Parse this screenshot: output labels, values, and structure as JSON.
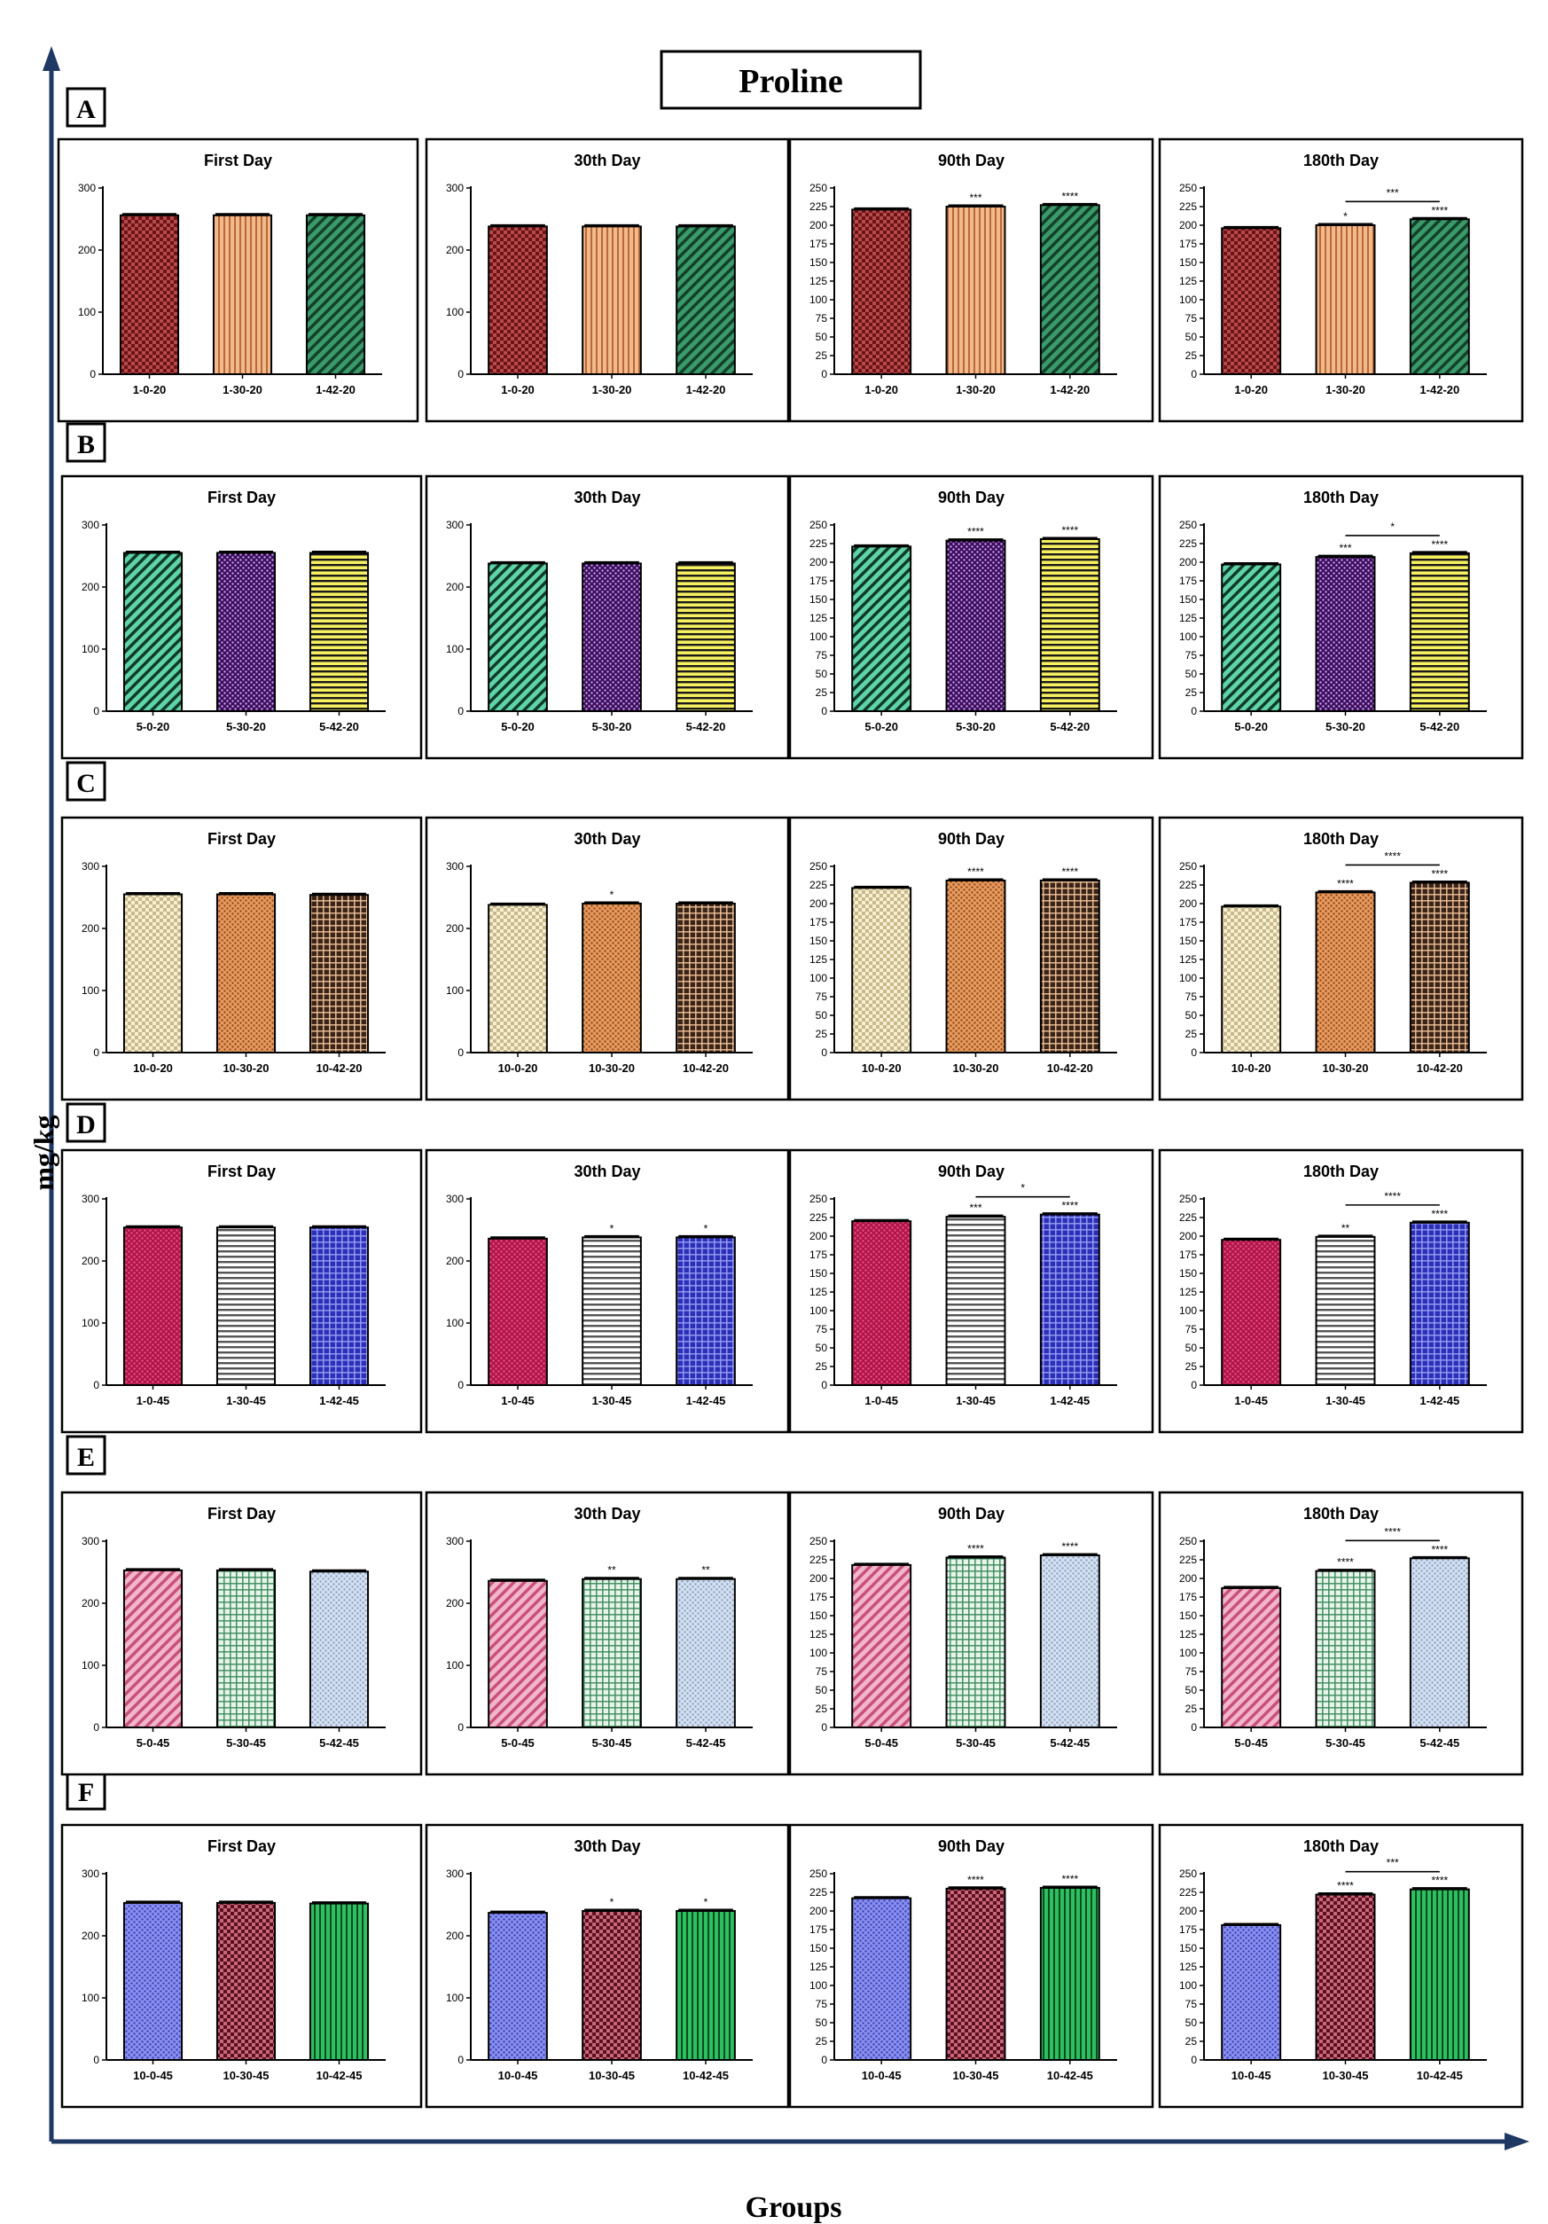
{
  "figure": {
    "title": "Proline",
    "ylabel": "mg/kg",
    "xlabel": "Groups"
  },
  "colors": {
    "frame": "#000000",
    "axis_arrow": "#1f3864"
  },
  "chart_data": [
    {
      "type": "bar",
      "row": "A",
      "title": "First Day",
      "categories": [
        "1-0-20",
        "1-30-20",
        "1-42-20"
      ],
      "values": [
        256,
        256,
        256
      ],
      "ylim": [
        0,
        300
      ],
      "yticks": [
        0,
        100,
        200,
        300
      ],
      "annotations": [
        "",
        "",
        ""
      ],
      "bracket": null,
      "patterns": [
        "checker-red",
        "vstripe-tan",
        "dstripe-green"
      ]
    },
    {
      "type": "bar",
      "row": "A",
      "title": "30th Day",
      "categories": [
        "1-0-20",
        "1-30-20",
        "1-42-20"
      ],
      "values": [
        238,
        238,
        238
      ],
      "ylim": [
        0,
        300
      ],
      "yticks": [
        0,
        100,
        200,
        300
      ],
      "annotations": [
        "",
        "",
        ""
      ],
      "bracket": null,
      "patterns": [
        "checker-red",
        "vstripe-tan",
        "dstripe-green"
      ]
    },
    {
      "type": "bar",
      "row": "A",
      "title": "90th Day",
      "categories": [
        "1-0-20",
        "1-30-20",
        "1-42-20"
      ],
      "values": [
        221,
        225,
        227
      ],
      "ylim": [
        0,
        250
      ],
      "yticks": [
        0,
        25,
        50,
        75,
        100,
        125,
        150,
        175,
        200,
        225,
        250
      ],
      "annotations": [
        "",
        "***",
        "****"
      ],
      "bracket": null,
      "patterns": [
        "checker-red",
        "vstripe-tan",
        "dstripe-green"
      ]
    },
    {
      "type": "bar",
      "row": "A",
      "title": "180th Day",
      "categories": [
        "1-0-20",
        "1-30-20",
        "1-42-20"
      ],
      "values": [
        196,
        200,
        208
      ],
      "ylim": [
        0,
        250
      ],
      "yticks": [
        0,
        25,
        50,
        75,
        100,
        125,
        150,
        175,
        200,
        225,
        250
      ],
      "annotations": [
        "",
        "*",
        "****"
      ],
      "bracket": {
        "from": 1,
        "to": 2,
        "label": "***"
      },
      "patterns": [
        "checker-red",
        "vstripe-tan",
        "dstripe-green"
      ]
    },
    {
      "type": "bar",
      "row": "B",
      "title": "First Day",
      "categories": [
        "5-0-20",
        "5-30-20",
        "5-42-20"
      ],
      "values": [
        255,
        255,
        255
      ],
      "ylim": [
        0,
        300
      ],
      "yticks": [
        0,
        100,
        200,
        300
      ],
      "annotations": [
        "",
        "",
        ""
      ],
      "bracket": null,
      "patterns": [
        "dstripe-mint",
        "dots-purple",
        "hstripe-yellow"
      ]
    },
    {
      "type": "bar",
      "row": "B",
      "title": "30th Day",
      "categories": [
        "5-0-20",
        "5-30-20",
        "5-42-20"
      ],
      "values": [
        238,
        238,
        238
      ],
      "ylim": [
        0,
        300
      ],
      "yticks": [
        0,
        100,
        200,
        300
      ],
      "annotations": [
        "",
        "",
        ""
      ],
      "bracket": null,
      "patterns": [
        "dstripe-mint",
        "dots-purple",
        "hstripe-yellow"
      ]
    },
    {
      "type": "bar",
      "row": "B",
      "title": "90th Day",
      "categories": [
        "5-0-20",
        "5-30-20",
        "5-42-20"
      ],
      "values": [
        221,
        229,
        231
      ],
      "ylim": [
        0,
        250
      ],
      "yticks": [
        0,
        25,
        50,
        75,
        100,
        125,
        150,
        175,
        200,
        225,
        250
      ],
      "annotations": [
        "",
        "****",
        "****"
      ],
      "bracket": null,
      "patterns": [
        "dstripe-mint",
        "dots-purple",
        "hstripe-yellow"
      ]
    },
    {
      "type": "bar",
      "row": "B",
      "title": "180th Day",
      "categories": [
        "5-0-20",
        "5-30-20",
        "5-42-20"
      ],
      "values": [
        197,
        207,
        212
      ],
      "ylim": [
        0,
        250
      ],
      "yticks": [
        0,
        25,
        50,
        75,
        100,
        125,
        150,
        175,
        200,
        225,
        250
      ],
      "annotations": [
        "",
        "***",
        "****"
      ],
      "bracket": {
        "from": 1,
        "to": 2,
        "label": "*"
      },
      "patterns": [
        "dstripe-mint",
        "dots-purple",
        "hstripe-yellow"
      ]
    },
    {
      "type": "bar",
      "row": "C",
      "title": "First Day",
      "categories": [
        "10-0-20",
        "10-30-20",
        "10-42-20"
      ],
      "values": [
        255,
        255,
        254
      ],
      "ylim": [
        0,
        300
      ],
      "yticks": [
        0,
        100,
        200,
        300
      ],
      "annotations": [
        "",
        "",
        ""
      ],
      "bracket": null,
      "patterns": [
        "checker-cream",
        "dots-orange",
        "grid-brown"
      ]
    },
    {
      "type": "bar",
      "row": "C",
      "title": "30th Day",
      "categories": [
        "10-0-20",
        "10-30-20",
        "10-42-20"
      ],
      "values": [
        238,
        240,
        240
      ],
      "ylim": [
        0,
        300
      ],
      "yticks": [
        0,
        100,
        200,
        300
      ],
      "annotations": [
        "",
        "*",
        ""
      ],
      "bracket": null,
      "patterns": [
        "checker-cream",
        "dots-orange",
        "grid-brown"
      ]
    },
    {
      "type": "bar",
      "row": "C",
      "title": "90th Day",
      "categories": [
        "10-0-20",
        "10-30-20",
        "10-42-20"
      ],
      "values": [
        221,
        231,
        231
      ],
      "ylim": [
        0,
        250
      ],
      "yticks": [
        0,
        25,
        50,
        75,
        100,
        125,
        150,
        175,
        200,
        225,
        250
      ],
      "annotations": [
        "",
        "****",
        "****"
      ],
      "bracket": null,
      "patterns": [
        "checker-cream",
        "dots-orange",
        "grid-brown"
      ]
    },
    {
      "type": "bar",
      "row": "C",
      "title": "180th Day",
      "categories": [
        "10-0-20",
        "10-30-20",
        "10-42-20"
      ],
      "values": [
        196,
        215,
        228
      ],
      "ylim": [
        0,
        250
      ],
      "yticks": [
        0,
        25,
        50,
        75,
        100,
        125,
        150,
        175,
        200,
        225,
        250
      ],
      "annotations": [
        "",
        "****",
        "****"
      ],
      "bracket": {
        "from": 1,
        "to": 2,
        "label": "****"
      },
      "patterns": [
        "checker-cream",
        "dots-orange",
        "grid-brown"
      ]
    },
    {
      "type": "bar",
      "row": "D",
      "title": "First Day",
      "categories": [
        "1-0-45",
        "1-30-45",
        "1-42-45"
      ],
      "values": [
        254,
        254,
        254
      ],
      "ylim": [
        0,
        300
      ],
      "yticks": [
        0,
        100,
        200,
        300
      ],
      "annotations": [
        "",
        "",
        ""
      ],
      "bracket": null,
      "patterns": [
        "dots-crimson",
        "hstripe-white",
        "weave-blue"
      ]
    },
    {
      "type": "bar",
      "row": "D",
      "title": "30th Day",
      "categories": [
        "1-0-45",
        "1-30-45",
        "1-42-45"
      ],
      "values": [
        236,
        238,
        238
      ],
      "ylim": [
        0,
        300
      ],
      "yticks": [
        0,
        100,
        200,
        300
      ],
      "annotations": [
        "",
        "*",
        "*"
      ],
      "bracket": null,
      "patterns": [
        "dots-crimson",
        "hstripe-white",
        "weave-blue"
      ]
    },
    {
      "type": "bar",
      "row": "D",
      "title": "90th Day",
      "categories": [
        "1-0-45",
        "1-30-45",
        "1-42-45"
      ],
      "values": [
        220,
        226,
        229
      ],
      "ylim": [
        0,
        250
      ],
      "yticks": [
        0,
        25,
        50,
        75,
        100,
        125,
        150,
        175,
        200,
        225,
        250
      ],
      "annotations": [
        "",
        "***",
        "****"
      ],
      "bracket": {
        "from": 1,
        "to": 2,
        "label": "*"
      },
      "patterns": [
        "dots-crimson",
        "hstripe-white",
        "weave-blue"
      ]
    },
    {
      "type": "bar",
      "row": "D",
      "title": "180th Day",
      "categories": [
        "1-0-45",
        "1-30-45",
        "1-42-45"
      ],
      "values": [
        195,
        199,
        218
      ],
      "ylim": [
        0,
        250
      ],
      "yticks": [
        0,
        25,
        50,
        75,
        100,
        125,
        150,
        175,
        200,
        225,
        250
      ],
      "annotations": [
        "",
        "**",
        "****"
      ],
      "bracket": {
        "from": 1,
        "to": 2,
        "label": "****"
      },
      "patterns": [
        "dots-crimson",
        "hstripe-white",
        "weave-blue"
      ]
    },
    {
      "type": "bar",
      "row": "E",
      "title": "First Day",
      "categories": [
        "5-0-45",
        "5-30-45",
        "5-42-45"
      ],
      "values": [
        253,
        253,
        251
      ],
      "ylim": [
        0,
        300
      ],
      "yticks": [
        0,
        100,
        200,
        300
      ],
      "annotations": [
        "",
        "",
        ""
      ],
      "bracket": null,
      "patterns": [
        "dstripe-pink",
        "grid-green",
        "dots-lightblue"
      ]
    },
    {
      "type": "bar",
      "row": "E",
      "title": "30th Day",
      "categories": [
        "5-0-45",
        "5-30-45",
        "5-42-45"
      ],
      "values": [
        236,
        239,
        239
      ],
      "ylim": [
        0,
        300
      ],
      "yticks": [
        0,
        100,
        200,
        300
      ],
      "annotations": [
        "",
        "**",
        "**"
      ],
      "bracket": null,
      "patterns": [
        "dstripe-pink",
        "grid-green",
        "dots-lightblue"
      ]
    },
    {
      "type": "bar",
      "row": "E",
      "title": "90th Day",
      "categories": [
        "5-0-45",
        "5-30-45",
        "5-42-45"
      ],
      "values": [
        218,
        228,
        231
      ],
      "ylim": [
        0,
        250
      ],
      "yticks": [
        0,
        25,
        50,
        75,
        100,
        125,
        150,
        175,
        200,
        225,
        250
      ],
      "annotations": [
        "",
        "****",
        "****"
      ],
      "bracket": null,
      "patterns": [
        "dstripe-pink",
        "grid-green",
        "dots-lightblue"
      ]
    },
    {
      "type": "bar",
      "row": "E",
      "title": "180th Day",
      "categories": [
        "5-0-45",
        "5-30-45",
        "5-42-45"
      ],
      "values": [
        187,
        210,
        227
      ],
      "ylim": [
        0,
        250
      ],
      "yticks": [
        0,
        25,
        50,
        75,
        100,
        125,
        150,
        175,
        200,
        225,
        250
      ],
      "annotations": [
        "",
        "****",
        "****"
      ],
      "bracket": {
        "from": 1,
        "to": 2,
        "label": "****"
      },
      "patterns": [
        "dstripe-pink",
        "grid-green",
        "dots-lightblue"
      ]
    },
    {
      "type": "bar",
      "row": "F",
      "title": "First Day",
      "categories": [
        "10-0-45",
        "10-30-45",
        "10-42-45"
      ],
      "values": [
        253,
        253,
        252
      ],
      "ylim": [
        0,
        300
      ],
      "yticks": [
        0,
        100,
        200,
        300
      ],
      "annotations": [
        "",
        "",
        ""
      ],
      "bracket": null,
      "patterns": [
        "dots-periwinkle",
        "checker-maroon",
        "vstripe-green"
      ]
    },
    {
      "type": "bar",
      "row": "F",
      "title": "30th Day",
      "categories": [
        "10-0-45",
        "10-30-45",
        "10-42-45"
      ],
      "values": [
        237,
        240,
        240
      ],
      "ylim": [
        0,
        300
      ],
      "yticks": [
        0,
        100,
        200,
        300
      ],
      "annotations": [
        "",
        "*",
        "*"
      ],
      "bracket": null,
      "patterns": [
        "dots-periwinkle",
        "checker-maroon",
        "vstripe-green"
      ]
    },
    {
      "type": "bar",
      "row": "F",
      "title": "90th Day",
      "categories": [
        "10-0-45",
        "10-30-45",
        "10-42-45"
      ],
      "values": [
        217,
        230,
        231
      ],
      "ylim": [
        0,
        250
      ],
      "yticks": [
        0,
        25,
        50,
        75,
        100,
        125,
        150,
        175,
        200,
        225,
        250
      ],
      "annotations": [
        "",
        "****",
        "****"
      ],
      "bracket": null,
      "patterns": [
        "dots-periwinkle",
        "checker-maroon",
        "vstripe-green"
      ]
    },
    {
      "type": "bar",
      "row": "F",
      "title": "180th Day",
      "categories": [
        "10-0-45",
        "10-30-45",
        "10-42-45"
      ],
      "values": [
        181,
        222,
        229
      ],
      "ylim": [
        0,
        250
      ],
      "yticks": [
        0,
        25,
        50,
        75,
        100,
        125,
        150,
        175,
        200,
        225,
        250
      ],
      "annotations": [
        "",
        "****",
        "****"
      ],
      "bracket": {
        "from": 1,
        "to": 2,
        "label": "***"
      },
      "patterns": [
        "dots-periwinkle",
        "checker-maroon",
        "vstripe-green"
      ]
    }
  ],
  "patterns": {
    "checker-red": {
      "kind": "checker",
      "fg": "#6b1418",
      "bg": "#b84a4a"
    },
    "vstripe-tan": {
      "kind": "vstripe",
      "fg": "#b8683a",
      "bg": "#f2b98a"
    },
    "dstripe-green": {
      "kind": "dstripe",
      "fg": "#13402a",
      "bg": "#3a9a6a"
    },
    "dstripe-mint": {
      "kind": "dstripe",
      "fg": "#0f3a28",
      "bg": "#5fd4a8"
    },
    "dots-purple": {
      "kind": "dots",
      "fg": "#c7a0e8",
      "bg": "#3a0c5c"
    },
    "hstripe-yellow": {
      "kind": "hstripe",
      "fg": "#1a1a1a",
      "bg": "#f7f060"
    },
    "checker-cream": {
      "kind": "checker",
      "fg": "#c9b88a",
      "bg": "#f6f0d2"
    },
    "dots-orange": {
      "kind": "dots",
      "fg": "#8a4a20",
      "bg": "#e99a5c"
    },
    "grid-brown": {
      "kind": "grid",
      "fg": "#f2c49a",
      "bg": "#3a2418"
    },
    "dots-crimson": {
      "kind": "dots",
      "fg": "#e05a80",
      "bg": "#b3124a"
    },
    "hstripe-white": {
      "kind": "hstripe",
      "fg": "#555555",
      "bg": "#ffffff"
    },
    "weave-blue": {
      "kind": "grid",
      "fg": "#9aa0f2",
      "bg": "#2c2fb8"
    },
    "dstripe-pink": {
      "kind": "dstripe",
      "fg": "#c8507a",
      "bg": "#f2b6cc"
    },
    "grid-green": {
      "kind": "grid",
      "fg": "#3a8a5a",
      "bg": "#e6f4ea"
    },
    "dots-lightblue": {
      "kind": "dots",
      "fg": "#8aa0c2",
      "bg": "#d6e2f2"
    },
    "dots-periwinkle": {
      "kind": "dots",
      "fg": "#3a40b8",
      "bg": "#8a90ee"
    },
    "checker-maroon": {
      "kind": "checker",
      "fg": "#5a1020",
      "bg": "#c8687a"
    },
    "vstripe-green": {
      "kind": "vstripe",
      "fg": "#0a4a20",
      "bg": "#2ec060"
    }
  }
}
